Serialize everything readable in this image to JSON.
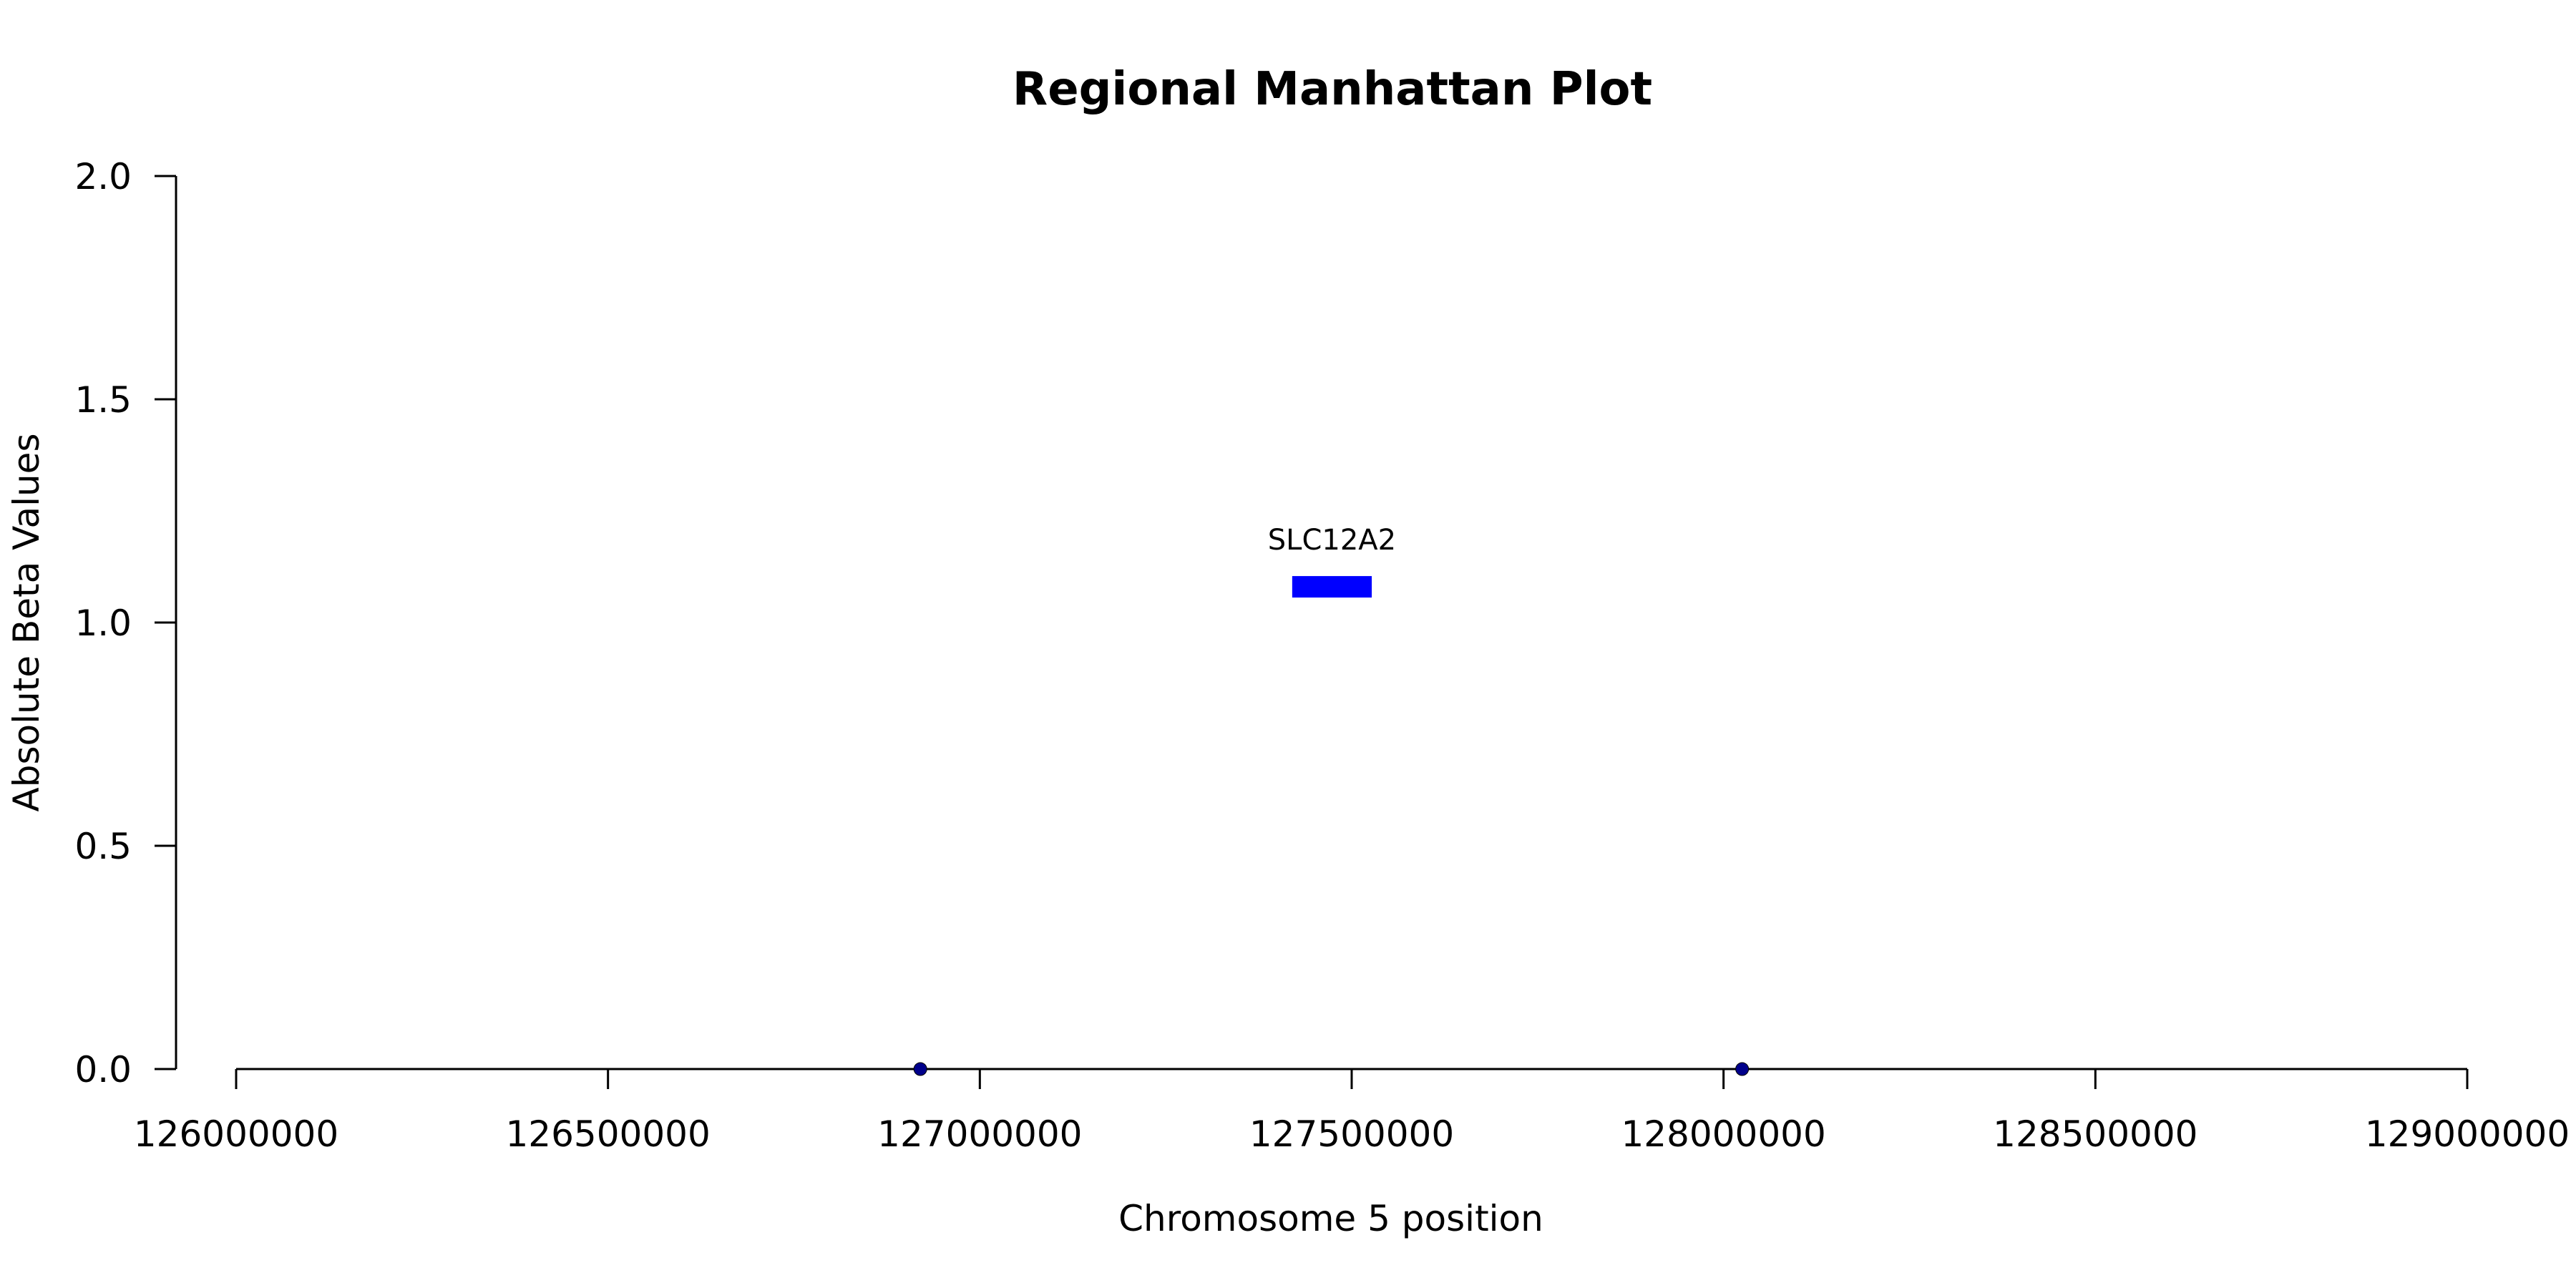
{
  "chart_data": {
    "type": "scatter",
    "title": "Regional Manhattan Plot",
    "xlabel": "Chromosome 5 position",
    "ylabel": "Absolute Beta Values",
    "xlim": [
      126000000,
      129000000
    ],
    "ylim": [
      0,
      2
    ],
    "x_ticks": [
      126000000,
      126500000,
      127000000,
      127500000,
      128000000,
      128500000,
      129000000
    ],
    "x_tick_labels": [
      "126000000",
      "126500000",
      "127000000",
      "127500000",
      "128000000",
      "128500000",
      "129000000"
    ],
    "y_ticks": [
      0,
      0.5,
      1,
      1.5,
      2
    ],
    "y_tick_labels": [
      "0.0",
      "0.5",
      "1.0",
      "1.5",
      "2.0"
    ],
    "grid": false,
    "series": [
      {
        "points": [
          {
            "x": 126920000,
            "y": 0
          },
          {
            "x": 128025000,
            "y": 0
          }
        ],
        "color": "#00008b"
      }
    ],
    "genes": [
      {
        "label": "SLC12A2",
        "start": 127420000,
        "end": 127527000,
        "y": 1.08,
        "color": "#0000ff"
      }
    ]
  }
}
